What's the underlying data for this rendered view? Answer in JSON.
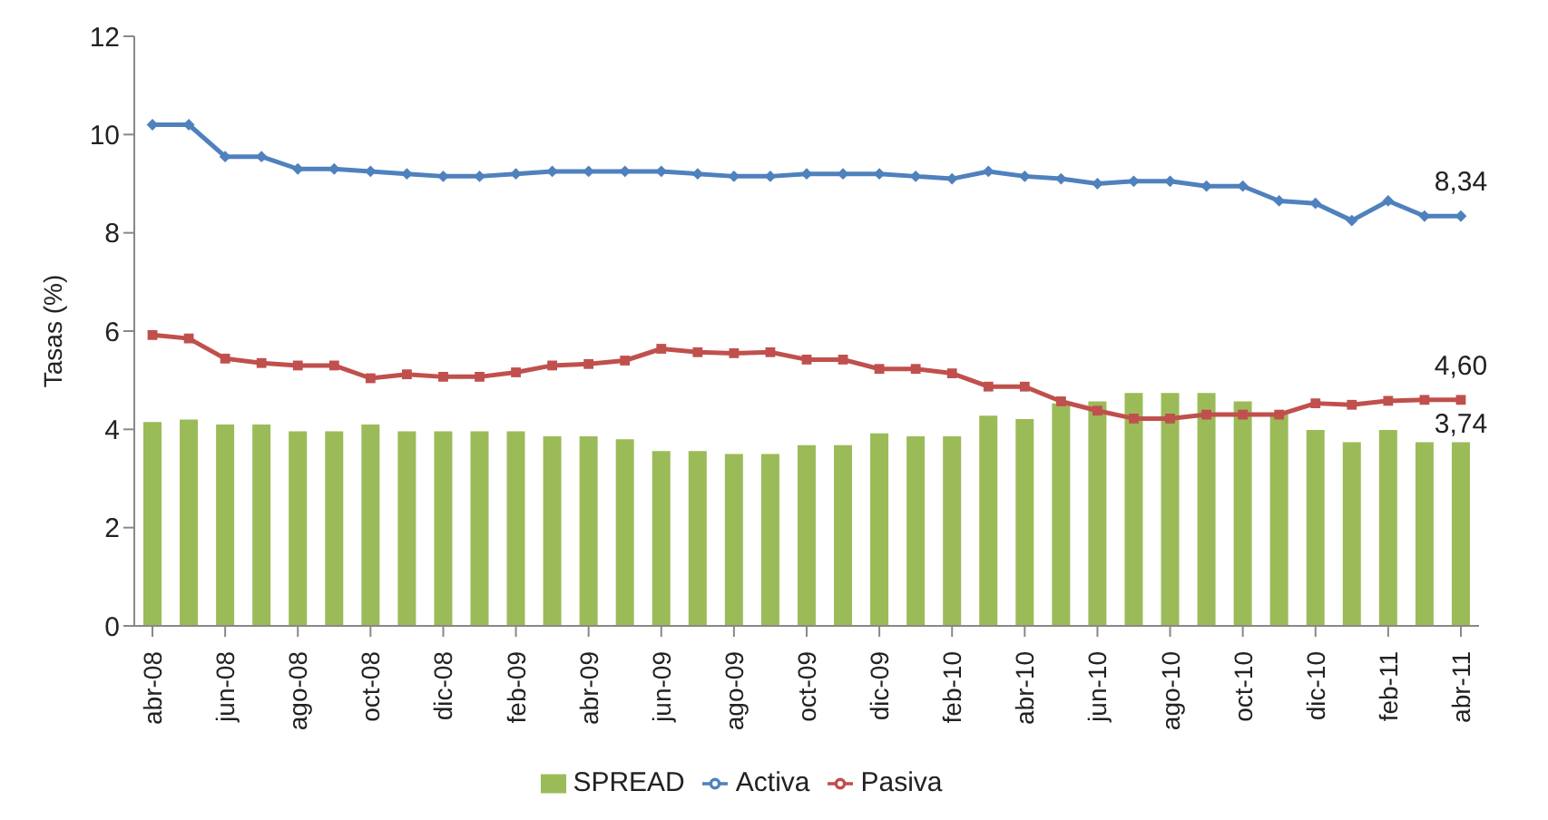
{
  "chart_data": {
    "type": "line",
    "ylabel": "Tasas (%)",
    "categories": [
      "abr-08",
      null,
      "jun-08",
      null,
      "ago-08",
      null,
      "oct-08",
      null,
      "dic-08",
      null,
      "feb-09",
      null,
      "abr-09",
      null,
      "jun-09",
      null,
      "ago-09",
      null,
      "oct-09",
      null,
      "dic-09",
      null,
      "feb-10",
      null,
      "abr-10",
      null,
      "jun-10",
      null,
      "ago-10",
      null,
      "oct-10",
      null,
      "dic-10",
      null,
      "feb-11",
      null,
      "abr-11"
    ],
    "series": [
      {
        "name": "SPREAD",
        "type": "bar",
        "color": "#9bbb59",
        "values": [
          4.15,
          4.2,
          4.1,
          4.1,
          3.96,
          3.96,
          4.1,
          3.96,
          3.96,
          3.96,
          3.96,
          3.86,
          3.86,
          3.8,
          3.56,
          3.56,
          3.5,
          3.5,
          3.68,
          3.68,
          3.92,
          3.86,
          3.86,
          4.28,
          4.21,
          4.53,
          4.57,
          4.74,
          4.74,
          4.74,
          4.57,
          4.3,
          3.99,
          3.74,
          3.99,
          3.74,
          3.74
        ],
        "value_labels": [
          null,
          null,
          null,
          null,
          null,
          null,
          null,
          null,
          null,
          null,
          null,
          null,
          null,
          null,
          null,
          null,
          null,
          null,
          null,
          null,
          null,
          null,
          null,
          null,
          null,
          null,
          null,
          null,
          null,
          null,
          null,
          null,
          null,
          null,
          null,
          null,
          "3,74"
        ]
      },
      {
        "name": "Activa",
        "color": "#4f81bd",
        "marker": "diamond",
        "values": [
          10.2,
          10.2,
          9.55,
          9.55,
          9.3,
          9.3,
          9.25,
          9.2,
          9.15,
          9.15,
          9.2,
          9.25,
          9.25,
          9.25,
          9.25,
          9.2,
          9.15,
          9.15,
          9.2,
          9.2,
          9.2,
          9.15,
          9.1,
          9.25,
          9.15,
          9.1,
          9.0,
          9.05,
          9.05,
          8.95,
          8.95,
          8.65,
          8.6,
          8.25,
          8.65,
          8.34,
          8.34
        ],
        "value_labels": [
          null,
          null,
          null,
          null,
          null,
          null,
          null,
          null,
          null,
          null,
          null,
          null,
          null,
          null,
          null,
          null,
          null,
          null,
          null,
          null,
          null,
          null,
          null,
          null,
          null,
          null,
          null,
          null,
          null,
          null,
          null,
          null,
          null,
          null,
          null,
          null,
          "8,34"
        ]
      },
      {
        "name": "Pasiva",
        "color": "#c0504d",
        "marker": "square",
        "values": [
          5.92,
          5.85,
          5.44,
          5.35,
          5.3,
          5.3,
          5.04,
          5.12,
          5.07,
          5.07,
          5.16,
          5.3,
          5.33,
          5.4,
          5.64,
          5.57,
          5.55,
          5.57,
          5.42,
          5.42,
          5.23,
          5.23,
          5.14,
          4.87,
          4.87,
          4.57,
          4.38,
          4.22,
          4.22,
          4.3,
          4.3,
          4.3,
          4.53,
          4.5,
          4.58,
          4.6,
          4.6
        ],
        "value_labels": [
          null,
          null,
          null,
          null,
          null,
          null,
          null,
          null,
          null,
          null,
          null,
          null,
          null,
          null,
          null,
          null,
          null,
          null,
          null,
          null,
          null,
          null,
          null,
          null,
          null,
          null,
          null,
          null,
          null,
          null,
          null,
          null,
          null,
          null,
          null,
          null,
          "4,60"
        ]
      }
    ],
    "ylim": [
      0,
      12
    ],
    "yticks": [
      0,
      2,
      4,
      6,
      8,
      10,
      12
    ],
    "grid": false,
    "legend": "bottom"
  }
}
